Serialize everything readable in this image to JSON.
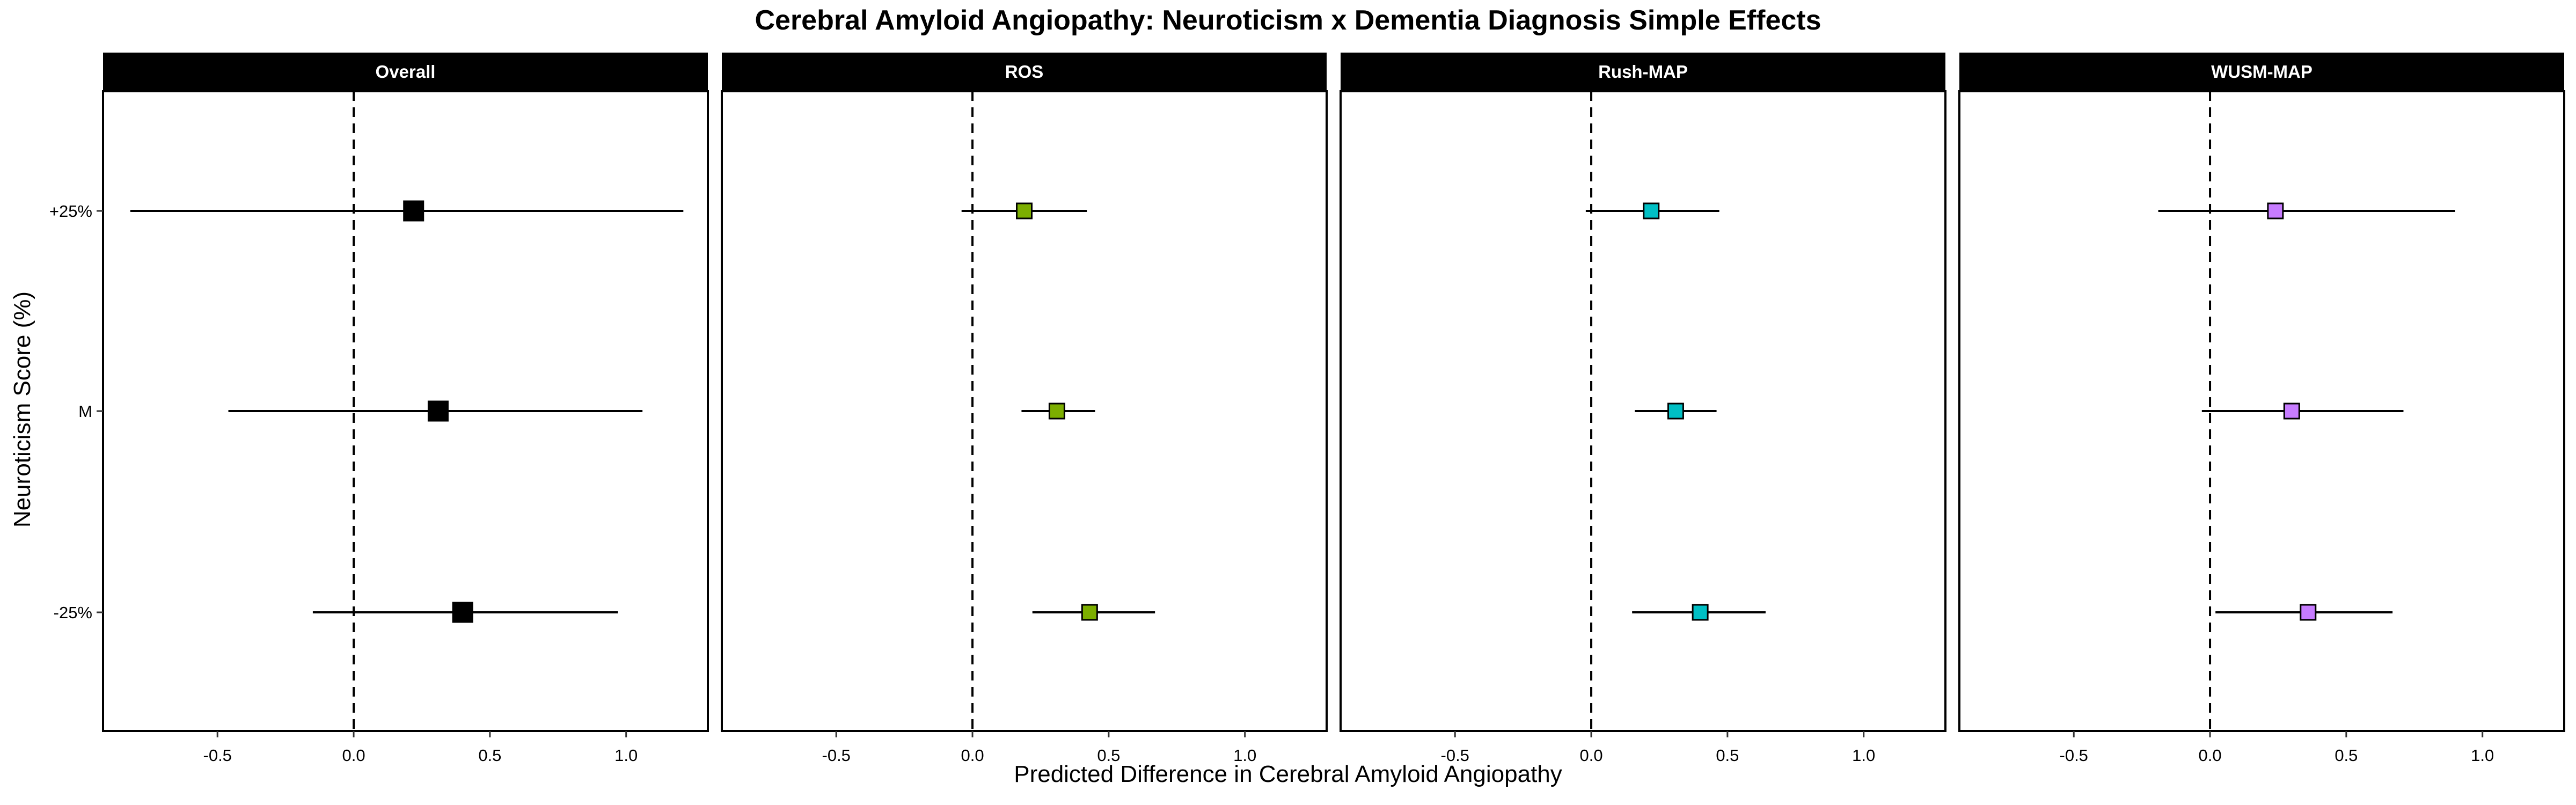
{
  "chart_data": {
    "type": "scatter",
    "title": "Cerebral Amyloid Angiopathy: Neuroticism x Dementia Diagnosis Simple Effects",
    "xlabel": "Predicted Difference in Cerebral Amyloid Angiopathy",
    "ylabel": "Neuroticism Score (%)",
    "xlim": [
      -0.92,
      1.3
    ],
    "x_ticks": [
      -0.5,
      0.0,
      0.5,
      1.0
    ],
    "x_tick_labels": [
      "-0.5",
      "0.0",
      "0.5",
      "1.0"
    ],
    "y_categories": [
      "+25%",
      "M",
      "-25%"
    ],
    "reference_line": 0,
    "grid": false,
    "colors": {
      "Overall": "#000000",
      "ROS": "#7CAE00",
      "Rush-MAP": "#00BFC4",
      "WUSM-MAP": "#C77CFF"
    },
    "panels": [
      {
        "name": "Overall",
        "points": [
          {
            "y": "+25%",
            "estimate": 0.22,
            "lower": -0.82,
            "upper": 1.21
          },
          {
            "y": "M",
            "estimate": 0.31,
            "lower": -0.46,
            "upper": 1.06
          },
          {
            "y": "-25%",
            "estimate": 0.4,
            "lower": -0.15,
            "upper": 0.97
          }
        ]
      },
      {
        "name": "ROS",
        "points": [
          {
            "y": "+25%",
            "estimate": 0.19,
            "lower": -0.04,
            "upper": 0.42
          },
          {
            "y": "M",
            "estimate": 0.31,
            "lower": 0.18,
            "upper": 0.45
          },
          {
            "y": "-25%",
            "estimate": 0.43,
            "lower": 0.22,
            "upper": 0.67
          }
        ]
      },
      {
        "name": "Rush-MAP",
        "points": [
          {
            "y": "+25%",
            "estimate": 0.22,
            "lower": -0.02,
            "upper": 0.47
          },
          {
            "y": "M",
            "estimate": 0.31,
            "lower": 0.16,
            "upper": 0.46
          },
          {
            "y": "-25%",
            "estimate": 0.4,
            "lower": 0.15,
            "upper": 0.64
          }
        ]
      },
      {
        "name": "WUSM-MAP",
        "points": [
          {
            "y": "+25%",
            "estimate": 0.24,
            "lower": -0.19,
            "upper": 0.9
          },
          {
            "y": "M",
            "estimate": 0.3,
            "lower": -0.03,
            "upper": 0.71
          },
          {
            "y": "-25%",
            "estimate": 0.36,
            "lower": 0.02,
            "upper": 0.67
          }
        ]
      }
    ]
  }
}
